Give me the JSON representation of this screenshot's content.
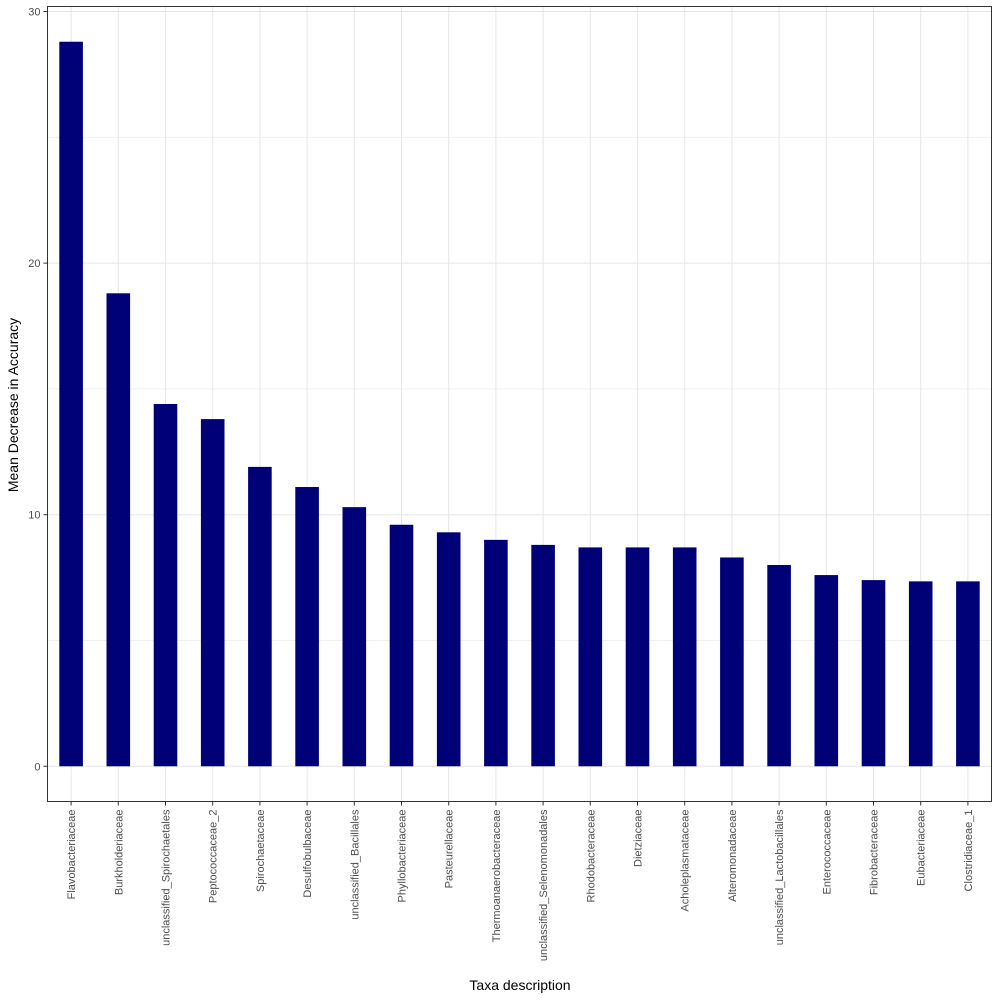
{
  "chart_data": {
    "type": "bar",
    "xlabel": "Taxa description",
    "ylabel": "Mean Decrease in Accuracy",
    "ylim": [
      -1.4,
      30.2
    ],
    "yticks": [
      0,
      10,
      20,
      30
    ],
    "grid": true,
    "bar_color": "#000077",
    "categories": [
      "Flavobacteriaceae",
      "Burkholderiaceae",
      "unclassified_Spirochaetales",
      "Peptococcaceae_2",
      "Spirochaetaceae",
      "Desulfobulbaceae",
      "unclassified_Bacillales",
      "Phyllobacteriaceae",
      "Pasteurellaceae",
      "Thermoanaerobacteraceae",
      "unclassified_Selenomonadales",
      "Rhodobacteraceae",
      "Dietziaceae",
      "Acholeplasmataceae",
      "Alteromonadaceae",
      "unclassified_Lactobacillales",
      "Enterococcaceae",
      "Fibrobacteraceae",
      "Eubacteriaceae",
      "Clostridiaceae_1"
    ],
    "values": [
      28.8,
      18.8,
      14.4,
      13.8,
      11.9,
      11.1,
      10.3,
      9.6,
      9.3,
      9.0,
      8.8,
      8.7,
      8.7,
      8.7,
      8.3,
      8.0,
      7.6,
      7.4,
      7.35,
      7.35
    ]
  }
}
